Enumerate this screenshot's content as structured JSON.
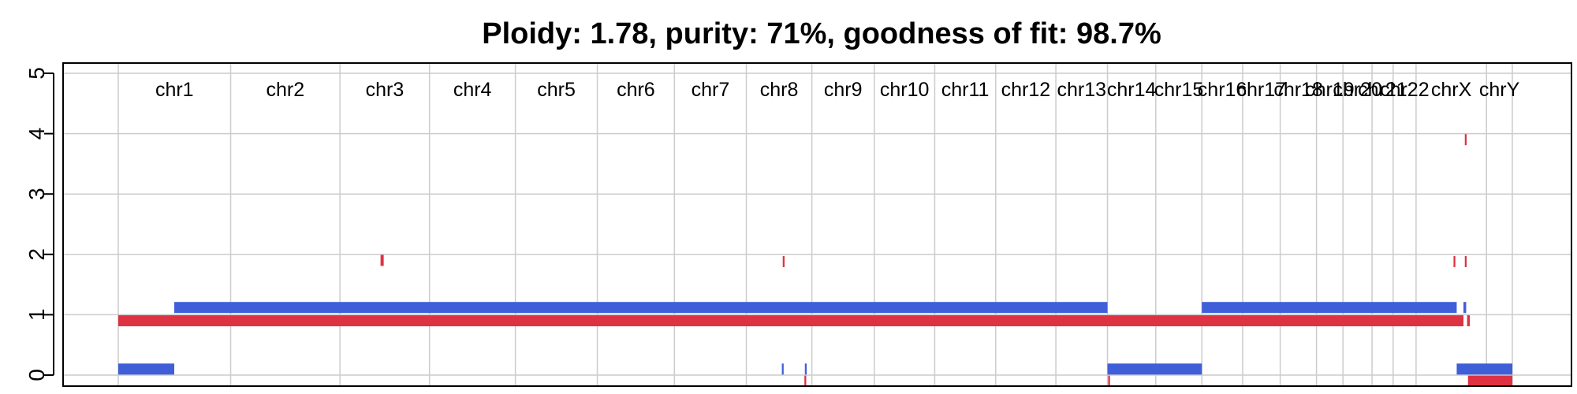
{
  "chart_data": {
    "type": "segments",
    "title": "Ploidy: 1.78, purity: 71%, goodness of fit: 98.7%",
    "xlabel": "",
    "ylabel": "",
    "ylim": [
      0,
      5
    ],
    "yticks": [
      0,
      1,
      2,
      3,
      4,
      5
    ],
    "grid": true,
    "legend": "none",
    "colors": {
      "major": "#3F5FD9",
      "minor": "#DE3242",
      "grid": "#CCCCCC",
      "axis": "#000000"
    },
    "chromosomes": [
      {
        "label": "chr1",
        "start": 0.0,
        "end": 248.96
      },
      {
        "label": "chr2",
        "start": 248.96,
        "end": 491.15
      },
      {
        "label": "chr3",
        "start": 491.15,
        "end": 689.45
      },
      {
        "label": "chr4",
        "start": 689.45,
        "end": 879.67
      },
      {
        "label": "chr5",
        "start": 879.67,
        "end": 1061.2
      },
      {
        "label": "chr6",
        "start": 1061.2,
        "end": 1232.0
      },
      {
        "label": "chr7",
        "start": 1232.0,
        "end": 1391.35
      },
      {
        "label": "chr8",
        "start": 1391.35,
        "end": 1536.49
      },
      {
        "label": "chr9",
        "start": 1536.49,
        "end": 1674.88
      },
      {
        "label": "chr10",
        "start": 1674.88,
        "end": 1808.68
      },
      {
        "label": "chr11",
        "start": 1808.68,
        "end": 1943.77
      },
      {
        "label": "chr12",
        "start": 1943.77,
        "end": 2077.04
      },
      {
        "label": "chr13",
        "start": 2077.04,
        "end": 2191.4
      },
      {
        "label": "chr14",
        "start": 2191.4,
        "end": 2298.44
      },
      {
        "label": "chr15",
        "start": 2298.44,
        "end": 2400.44
      },
      {
        "label": "chr16",
        "start": 2400.44,
        "end": 2490.78
      },
      {
        "label": "chr17",
        "start": 2490.78,
        "end": 2574.04
      },
      {
        "label": "chr18",
        "start": 2574.04,
        "end": 2654.42
      },
      {
        "label": "chr19",
        "start": 2654.42,
        "end": 2713.04
      },
      {
        "label": "chr20",
        "start": 2713.04,
        "end": 2777.48
      },
      {
        "label": "chr21",
        "start": 2777.48,
        "end": 2824.19
      },
      {
        "label": "chr22",
        "start": 2824.19,
        "end": 2875.01
      },
      {
        "label": "chrX",
        "start": 2875.01,
        "end": 3031.05
      },
      {
        "label": "chrY",
        "start": 3031.05,
        "end": 3088.28
      }
    ],
    "series": [
      {
        "name": "",
        "color_key": "major",
        "segments": [
          {
            "start": 0.0,
            "end": 124.0,
            "value": 0.1
          },
          {
            "start": 124.0,
            "end": 2191.4,
            "value": 1.12
          },
          {
            "start": 2191.4,
            "end": 2400.44,
            "value": 0.1
          },
          {
            "start": 2400.44,
            "end": 2965.0,
            "value": 1.12
          },
          {
            "start": 2965.0,
            "end": 3088.28,
            "value": 0.1
          },
          {
            "start": 2980.0,
            "end": 2986.0,
            "value": 1.12
          },
          {
            "start": 1470.0,
            "end": 1474.0,
            "value": 0.1
          },
          {
            "start": 1521.0,
            "end": 1525.0,
            "value": 0.1
          }
        ]
      },
      {
        "name": "",
        "color_key": "minor",
        "segments": [
          {
            "start": 0.0,
            "end": 2980.0,
            "value": 0.9
          },
          {
            "start": 2988.0,
            "end": 2994.0,
            "value": 0.9
          },
          {
            "start": 2990.0,
            "end": 3088.28,
            "value": -0.1
          },
          {
            "start": 581.0,
            "end": 588.0,
            "value": 1.9
          },
          {
            "start": 1472.0,
            "end": 1476.0,
            "value": 1.88
          },
          {
            "start": 1520.0,
            "end": 1524.0,
            "value": -0.1
          },
          {
            "start": 2193.0,
            "end": 2197.0,
            "value": -0.1
          },
          {
            "start": 2958.0,
            "end": 2962.0,
            "value": 1.88
          },
          {
            "start": 2983.0,
            "end": 2987.0,
            "value": 1.88
          },
          {
            "start": 2983.0,
            "end": 2987.0,
            "value": 3.9
          }
        ]
      }
    ]
  }
}
